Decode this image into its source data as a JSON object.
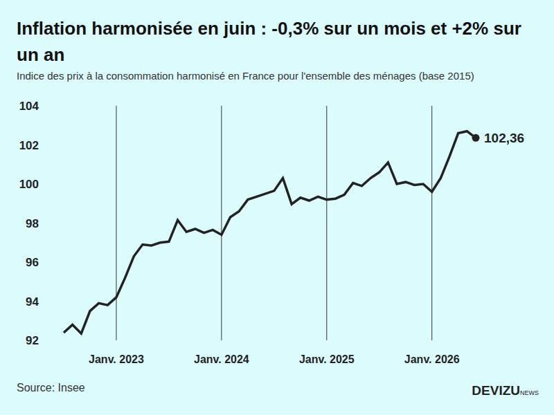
{
  "chart_data": {
    "type": "line",
    "title": "Inflation harmonisée en juin : -0,3% sur un mois et +2% sur un an",
    "subtitle": "Indice des prix à la consommation harmonisé en France pour l'ensemble des ménages (base 2015)",
    "source": "Source: Insee",
    "logo": "DEVIZU",
    "logo_suffix": "NEWS",
    "categories": [
      null,
      null,
      null,
      null,
      null,
      null,
      "Janv. 2023",
      null,
      null,
      null,
      null,
      null,
      null,
      null,
      null,
      null,
      null,
      null,
      "Janv. 2024",
      null,
      null,
      null,
      null,
      null,
      null,
      null,
      null,
      null,
      null,
      null,
      "Janv. 2025",
      null,
      null,
      null,
      null,
      null,
      null,
      null,
      null,
      null,
      null,
      null,
      "Janv. 2026",
      null,
      null,
      null,
      null,
      null
    ],
    "values": [
      92.39,
      92.8,
      92.35,
      93.5,
      93.9,
      93.8,
      94.2,
      95.2,
      96.3,
      96.9,
      96.85,
      97.0,
      97.05,
      98.15,
      97.55,
      97.7,
      97.5,
      97.65,
      97.4,
      98.3,
      98.6,
      99.2,
      99.35,
      99.5,
      99.65,
      100.3,
      98.97,
      99.3,
      99.15,
      99.35,
      99.2,
      99.25,
      99.45,
      100.05,
      99.9,
      100.3,
      100.6,
      101.1,
      100.0,
      100.1,
      99.95,
      100.0,
      99.6,
      100.3,
      101.4,
      102.6,
      102.7,
      102.36
    ],
    "value_labels": [
      null,
      null,
      null,
      null,
      null,
      null,
      null,
      null,
      null,
      null,
      null,
      null,
      null,
      null,
      null,
      null,
      null,
      null,
      null,
      null,
      null,
      null,
      null,
      null,
      null,
      null,
      null,
      null,
      null,
      null,
      null,
      null,
      null,
      null,
      null,
      null,
      null,
      null,
      null,
      null,
      null,
      null,
      null,
      null,
      null,
      null,
      null,
      "102,36"
    ],
    "color": "#222222",
    "ylim": [
      92,
      104
    ],
    "yticks": [
      92,
      94,
      96,
      98,
      100,
      102,
      104
    ],
    "grid": "x"
  }
}
